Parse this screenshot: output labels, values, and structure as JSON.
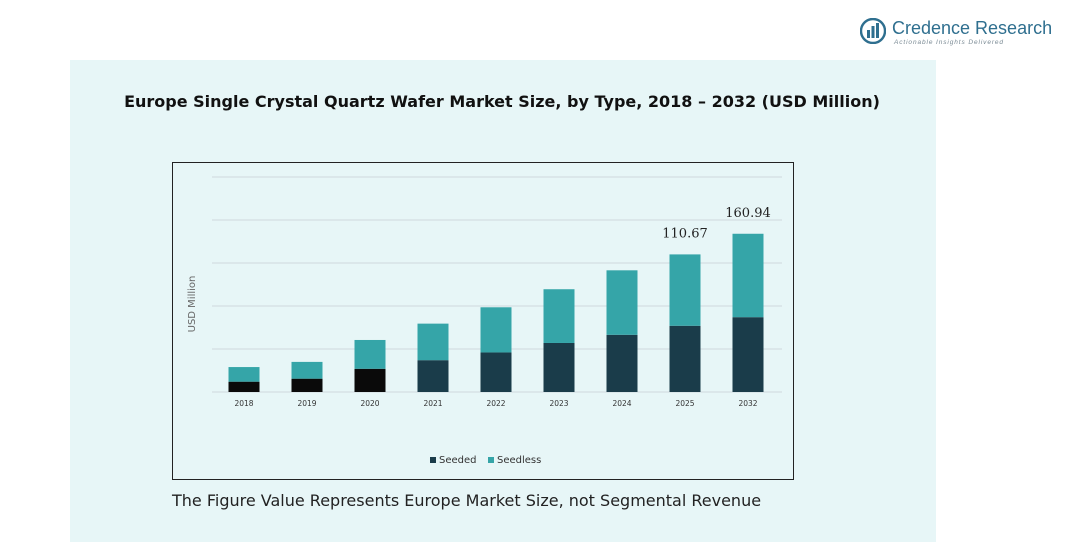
{
  "brand": {
    "name": "Credence Research",
    "tagline": "Actionable Insights Delivered",
    "primary_color": "#2f6f8f",
    "icon": "bar-chart-logo-icon"
  },
  "footnote": "The Figure Value Represents Europe Market Size, not Segmental Revenue",
  "chart_data": {
    "type": "bar",
    "stacked": true,
    "title": "Europe Single Crystal Quartz Wafer Market Size, by Type, 2018 – 2032 (USD Million)",
    "ylabel": "USD Million",
    "xlabel": "",
    "categories": [
      "2018",
      "2019",
      "2020",
      "2021",
      "2022",
      "2023",
      "2024",
      "2025",
      "2032"
    ],
    "series": [
      {
        "name": "Seeded",
        "color": "#1a3c4a",
        "values": [
          12,
          15.5,
          27,
          37,
          46,
          57,
          66.5,
          77,
          87
        ]
      },
      {
        "name": "Seedless",
        "color": "#35a5a8",
        "values": [
          17,
          19.5,
          33.5,
          42.5,
          52.5,
          62.5,
          75,
          83,
          97
        ]
      }
    ],
    "early_seeded_color": "#0a0a0a",
    "data_labels": [
      {
        "category": "2025",
        "text": "110.67"
      },
      {
        "category": "2032",
        "text": "160.94"
      }
    ],
    "ylim": [
      0,
      250
    ],
    "y_gridlines": [
      0,
      50,
      100,
      150,
      200,
      250
    ],
    "grid": true,
    "show_y_tick_labels": false,
    "legend_position": "bottom"
  }
}
